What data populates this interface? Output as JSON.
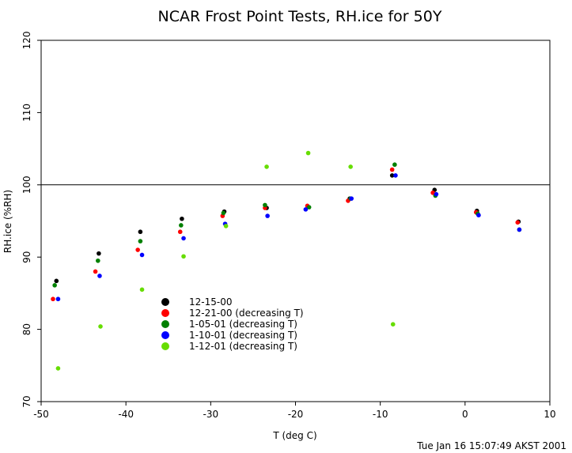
{
  "timestamp": "Tue Jan 16 15:07:49 AKST 2001",
  "chart_data": {
    "type": "scatter",
    "title": "NCAR Frost Point Tests, RH.ice for 50Y",
    "xlabel": "T (deg C)",
    "ylabel": "RH.ice (%RH)",
    "xlim": [
      -50,
      10
    ],
    "ylim": [
      70,
      120
    ],
    "xticks": [
      -50,
      -40,
      -30,
      -20,
      -10,
      0,
      10
    ],
    "yticks": [
      70,
      80,
      90,
      100,
      110,
      120
    ],
    "reference_line_y": 100,
    "grid": false,
    "legend_position": "lower-left",
    "series": [
      {
        "name": "12-15-00",
        "color": "#000000",
        "points": [
          [
            -48.2,
            86.7
          ],
          [
            -43.2,
            90.5
          ],
          [
            -38.3,
            93.5
          ],
          [
            -33.4,
            95.3
          ],
          [
            -28.4,
            96.3
          ],
          [
            -23.4,
            96.8
          ],
          [
            -13.6,
            98.1
          ],
          [
            -8.6,
            101.3
          ],
          [
            -3.6,
            99.3
          ],
          [
            1.4,
            96.4
          ],
          [
            6.3,
            94.9
          ]
        ]
      },
      {
        "name": "12-21-00 (decreasing T)",
        "color": "#ff0000",
        "points": [
          [
            -48.6,
            84.2
          ],
          [
            -43.6,
            88.0
          ],
          [
            -38.6,
            91.0
          ],
          [
            -33.6,
            93.5
          ],
          [
            -28.6,
            95.7
          ],
          [
            -23.6,
            96.8
          ],
          [
            -18.6,
            97.1
          ],
          [
            -13.8,
            97.8
          ],
          [
            -8.6,
            102.1
          ],
          [
            -3.8,
            98.9
          ],
          [
            1.3,
            96.2
          ],
          [
            6.2,
            94.8
          ]
        ]
      },
      {
        "name": "1-05-01 (decreasing T)",
        "color": "#008000",
        "points": [
          [
            -48.4,
            86.1
          ],
          [
            -43.3,
            89.5
          ],
          [
            -38.3,
            92.2
          ],
          [
            -33.5,
            94.4
          ],
          [
            -28.5,
            96.1
          ],
          [
            -23.6,
            97.2
          ],
          [
            -18.4,
            96.9
          ],
          [
            -13.5,
            98.1
          ],
          [
            -8.3,
            102.8
          ],
          [
            -3.5,
            98.5
          ],
          [
            1.5,
            96.0
          ],
          [
            6.4,
            93.8
          ]
        ]
      },
      {
        "name": "1-10-01 (decreasing T)",
        "color": "#0000ff",
        "points": [
          [
            -48.0,
            84.2
          ],
          [
            -43.1,
            87.4
          ],
          [
            -38.1,
            90.3
          ],
          [
            -33.2,
            92.6
          ],
          [
            -28.3,
            94.6
          ],
          [
            -23.3,
            95.7
          ],
          [
            -18.8,
            96.6
          ],
          [
            -13.4,
            98.1
          ],
          [
            -8.2,
            101.3
          ],
          [
            -3.4,
            98.7
          ],
          [
            1.6,
            95.8
          ],
          [
            6.4,
            93.8
          ]
        ]
      },
      {
        "name": "1-12-01 (decreasing T)",
        "color": "#66dd00",
        "points": [
          [
            -48.0,
            74.6
          ],
          [
            -43.0,
            80.4
          ],
          [
            -38.1,
            85.5
          ],
          [
            -33.2,
            90.1
          ],
          [
            -28.2,
            94.3
          ],
          [
            -23.4,
            102.5
          ],
          [
            -18.5,
            104.4
          ],
          [
            -13.5,
            102.5
          ],
          [
            -8.5,
            80.7
          ]
        ]
      }
    ]
  }
}
